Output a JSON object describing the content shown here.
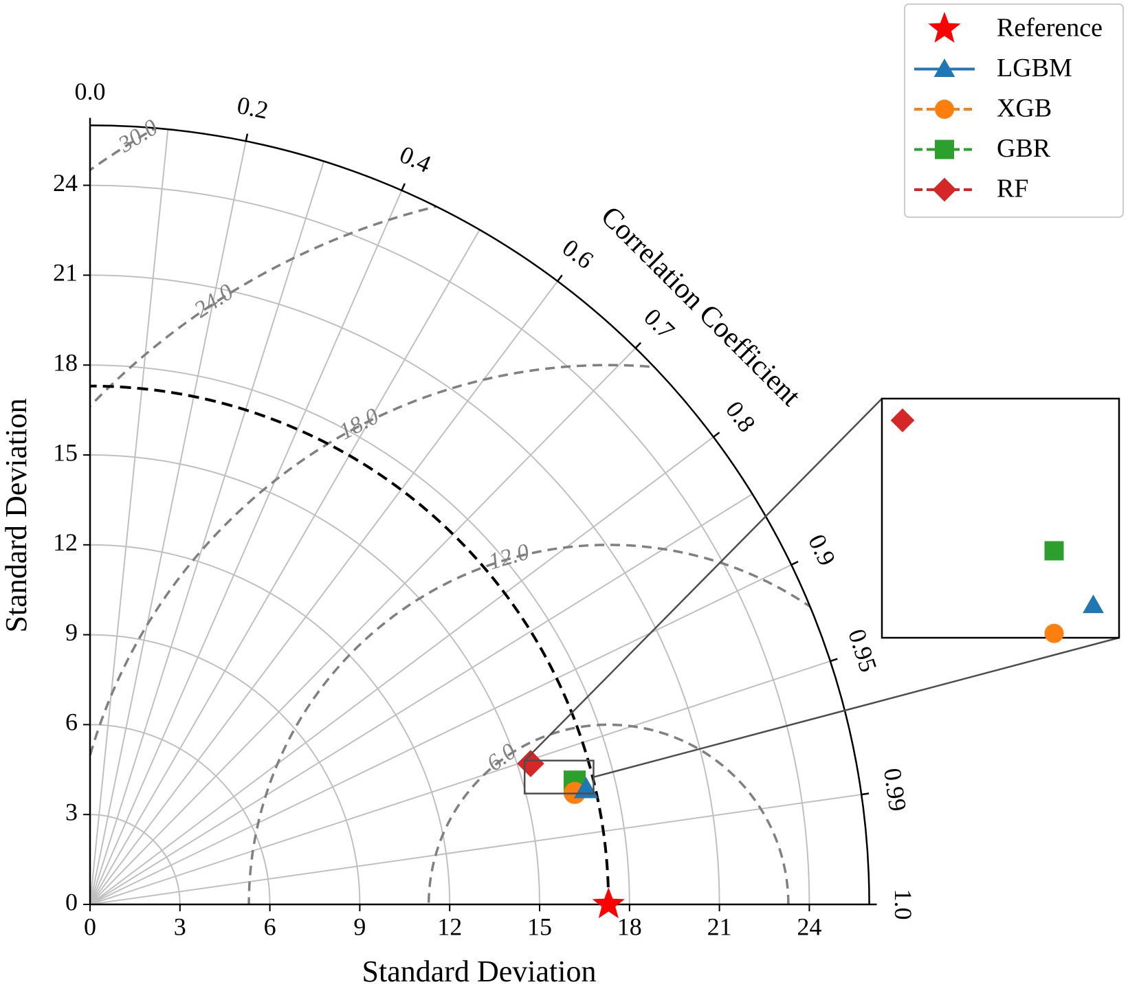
{
  "chart_data": {
    "type": "taylor",
    "xlabel": "Standard Deviation",
    "ylabel": "Standard Deviation",
    "corr_label": "Correlation Coefficient",
    "std_max": 26,
    "std_ticks": [
      0,
      3,
      6,
      9,
      12,
      15,
      18,
      21,
      24
    ],
    "std_tick_labels": [
      "0",
      "3",
      "6",
      "9",
      "12",
      "15",
      "18",
      "21",
      "24"
    ],
    "corr_ticks": [
      0.0,
      0.2,
      0.4,
      0.6,
      0.7,
      0.8,
      0.9,
      0.95,
      0.99,
      1.0
    ],
    "corr_tick_labels": [
      "0.0",
      "0.2",
      "0.4",
      "0.6",
      "0.7",
      "0.8",
      "0.9",
      "0.95",
      "0.99",
      "1.0"
    ],
    "rms_contours": [
      6,
      12,
      18,
      24,
      30
    ],
    "rms_labels": [
      "6.0",
      "12.0",
      "18.0",
      "24.0",
      "30.0"
    ],
    "reference": {
      "name": "Reference",
      "std": 17.3,
      "corr": 1.0,
      "color": "#ff0000",
      "marker": "star"
    },
    "models": [
      {
        "name": "LGBM",
        "x": 16.55,
        "y": 3.85,
        "color": "#1f77b4",
        "marker": "triangle"
      },
      {
        "name": "XGB",
        "x": 16.17,
        "y": 3.72,
        "color": "#ff7f0e",
        "marker": "circle"
      },
      {
        "name": "GBR",
        "x": 16.17,
        "y": 4.1,
        "color": "#2ca02c",
        "marker": "square"
      },
      {
        "name": "RF",
        "x": 14.7,
        "y": 4.7,
        "color": "#d62728",
        "marker": "diamond"
      }
    ],
    "legend": [
      "Reference",
      "LGBM",
      "XGB",
      "GBR",
      "RF"
    ],
    "legend_position": "top-right",
    "inset": {
      "x_range": [
        14.5,
        16.8
      ],
      "y_range": [
        3.7,
        4.8
      ],
      "location": "right"
    }
  }
}
